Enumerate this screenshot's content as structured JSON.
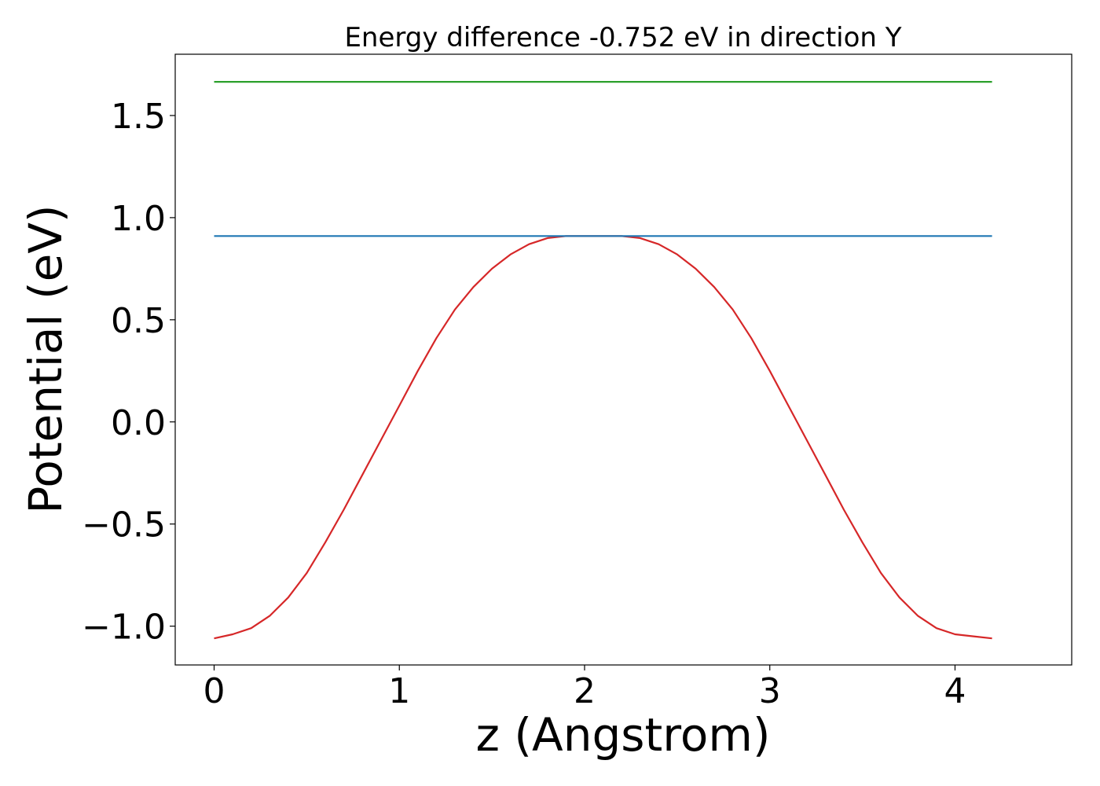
{
  "chart_data": {
    "type": "line",
    "title": "Energy difference -0.752 eV in direction Y",
    "xlabel": "z (Angstrom)",
    "ylabel": "Potential (eV)",
    "xlim": [
      -0.21,
      4.63
    ],
    "ylim": [
      -1.19,
      1.8
    ],
    "x_ticks": [
      0,
      1,
      2,
      3,
      4
    ],
    "x_tick_labels": [
      "0",
      "1",
      "2",
      "3",
      "4"
    ],
    "y_ticks": [
      -1.0,
      -0.5,
      0.0,
      0.5,
      1.0,
      1.5
    ],
    "y_tick_labels": [
      "−1.0",
      "−0.5",
      "0.0",
      "0.5",
      "1.0",
      "1.5"
    ],
    "grid": false,
    "series": [
      {
        "color": "#d62728",
        "x": [
          0,
          0.1,
          0.2,
          0.3,
          0.4,
          0.5,
          0.6,
          0.7,
          0.8,
          0.9,
          1.0,
          1.1,
          1.2,
          1.3,
          1.4,
          1.5,
          1.6,
          1.7,
          1.8,
          1.9,
          2.0,
          2.1,
          2.14,
          2.2,
          2.3,
          2.4,
          2.5,
          2.6,
          2.7,
          2.8,
          2.9,
          3.0,
          3.1,
          3.2,
          3.3,
          3.4,
          3.5,
          3.6,
          3.7,
          3.8,
          3.9,
          4.0,
          4.1,
          4.2
        ],
        "y": [
          -1.06,
          -1.04,
          -1.01,
          -0.95,
          -0.86,
          -0.74,
          -0.59,
          -0.43,
          -0.26,
          -0.09,
          0.08,
          0.25,
          0.41,
          0.55,
          0.66,
          0.75,
          0.82,
          0.87,
          0.9,
          0.91,
          0.91,
          0.91,
          0.91,
          0.91,
          0.9,
          0.87,
          0.82,
          0.75,
          0.66,
          0.55,
          0.41,
          0.25,
          0.08,
          -0.09,
          -0.26,
          -0.43,
          -0.59,
          -0.74,
          -0.86,
          -0.95,
          -1.01,
          -1.04,
          -1.05,
          -1.06
        ]
      },
      {
        "color": "#1f77b4",
        "x": [
          0,
          4.2
        ],
        "y": [
          0.91,
          0.91
        ]
      },
      {
        "color": "#2ca02c",
        "x": [
          0,
          4.2
        ],
        "y": [
          1.665,
          1.665
        ]
      }
    ]
  }
}
